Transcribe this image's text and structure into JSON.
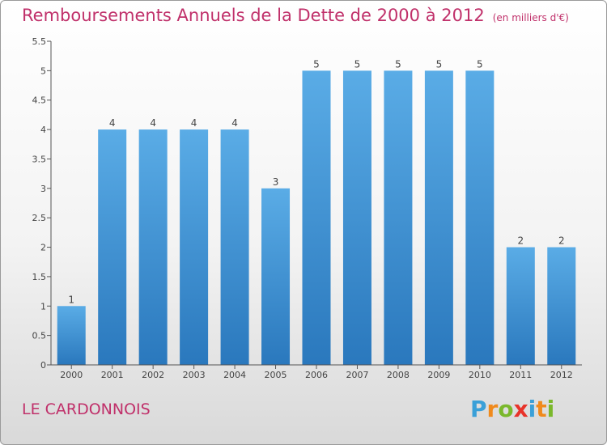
{
  "title": "Remboursements Annuels de la Dette de 2000 à 2012",
  "unit": "(en milliers d'€)",
  "commune": "LE CARDONNOIS",
  "logo": {
    "text": "Proxiti",
    "letters": [
      {
        "char": "P",
        "color": "#3aa0d8"
      },
      {
        "char": "r",
        "color": "#f08a1c"
      },
      {
        "char": "o",
        "color": "#7ab82c"
      },
      {
        "char": "x",
        "color": "#e8332a"
      },
      {
        "char": "i",
        "color": "#3aa0d8"
      },
      {
        "char": "t",
        "color": "#f08a1c"
      },
      {
        "char": "i",
        "color": "#7ab82c"
      }
    ]
  },
  "colors": {
    "title": "#c0306a",
    "bar_light": "#5aace6",
    "bar_dark": "#2a78bd",
    "axis": "#555555"
  },
  "chart_data": {
    "type": "bar",
    "categories": [
      "2000",
      "2001",
      "2002",
      "2003",
      "2004",
      "2005",
      "2006",
      "2007",
      "2008",
      "2009",
      "2010",
      "2011",
      "2012"
    ],
    "values": [
      1,
      4,
      4,
      4,
      4,
      3,
      5,
      5,
      5,
      5,
      5,
      2,
      2
    ],
    "ylim": [
      0,
      5.5
    ],
    "yticks": [
      "0",
      "0.5",
      "1",
      "1.5",
      "2",
      "2.5",
      "3",
      "3.5",
      "4",
      "4.5",
      "5",
      "5.5"
    ],
    "data_labels": [
      "1",
      "4",
      "4",
      "4",
      "4",
      "3",
      "5",
      "5",
      "5",
      "5",
      "5",
      "2",
      "2"
    ],
    "xlabel": "",
    "ylabel": "",
    "grid": false
  }
}
